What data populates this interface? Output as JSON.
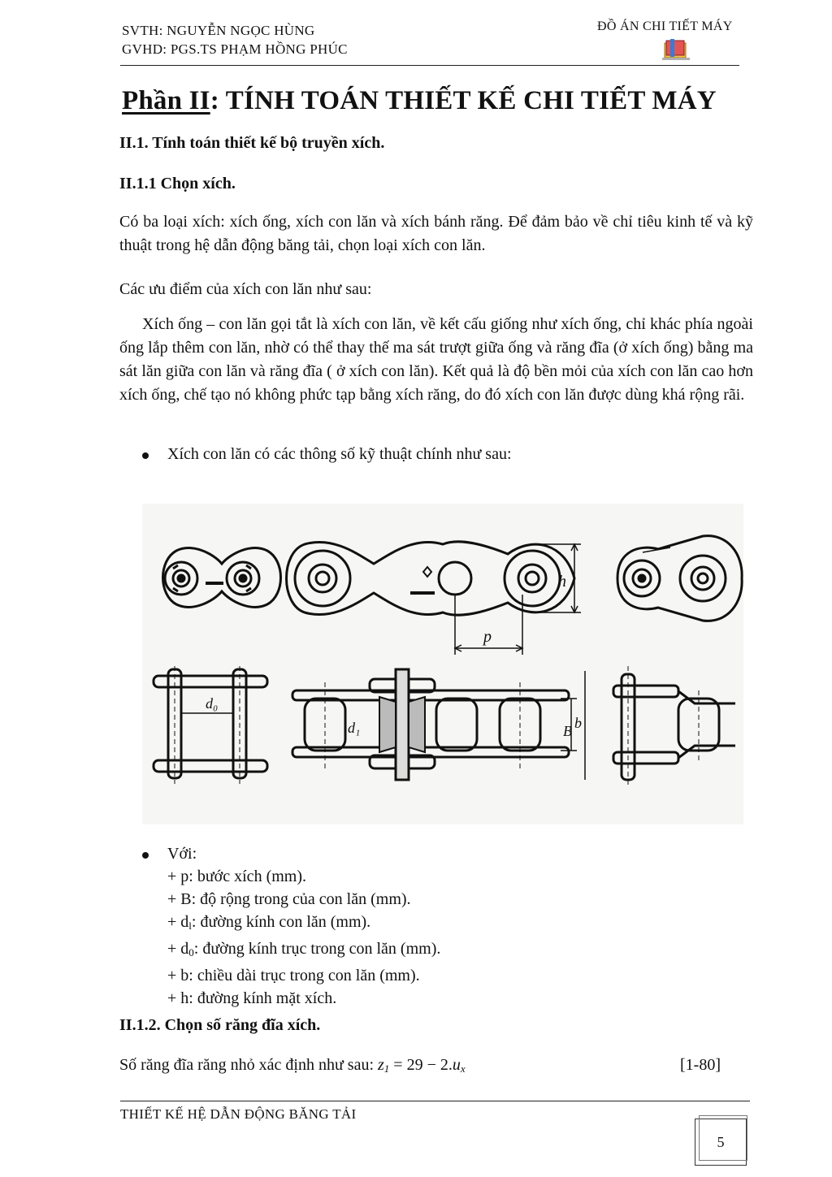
{
  "header": {
    "student": "SVTH: NGUYỄN NGỌC HÙNG",
    "supervisor": "GVHD: PGS.TS PHẠM HỒNG PHÚC",
    "project": "ĐỒ ÁN CHI TIẾT MÁY",
    "logo_icon": "book-logo-icon"
  },
  "title": {
    "part": "Phần II",
    "rest": ": TÍNH TOÁN THIẾT KẾ CHI TIẾT MÁY"
  },
  "sections": {
    "s1": "II.1. Tính toán thiết kế bộ truyền xích.",
    "s11": "II.1.1 Chọn xích.",
    "s12": "II.1.2. Chọn số răng đĩa xích."
  },
  "paragraphs": {
    "p1": "Có ba loại xích: xích ống, xích con lăn và xích bánh răng. Để đảm bảo về chỉ tiêu kinh tế và kỹ thuật trong hệ dẫn động băng tải, chọn loại xích con lăn.",
    "p2": "Các ưu điểm của xích con lăn như sau:",
    "p3": "Xích ống – con lăn gọi tắt là xích con lăn, về kết cấu giống như xích ống, chỉ khác phía ngoài ống lắp thêm con lăn, nhờ có thể thay thế ma sát trượt giữa ống và răng đĩa (ở xích ống) bằng ma sát lăn giữa con lăn và răng đĩa ( ở xích con lăn). Kết quả là độ bền mỏi của xích con lăn cao hơn xích ống, chế tạo nó không phức tạp bằng xích răng, do đó xích con lăn được dùng khá rộng rãi."
  },
  "bullets": {
    "b1": "Xích con lăn có các thông số kỹ thuật chính như sau:",
    "b2": "Với:"
  },
  "figure": {
    "labels": {
      "h": "h",
      "p": "p",
      "d0": "d₀",
      "d1": "d₁",
      "B": "B",
      "b": "b"
    }
  },
  "params": {
    "p": "+ p: bước xích (mm).",
    "B": "+ B: độ rộng trong của con lăn (mm).",
    "d1_pre": "+ d",
    "d1_sub": "l",
    "d1_post": ": đường kính con lăn (mm).",
    "d0_pre": "+ d",
    "d0_sub": "0",
    "d0_post": ": đường kính trục trong con lăn (mm).",
    "b": "+ b: chiều dài trục trong con lăn (mm).",
    "h": "+ h: đường kính mặt xích."
  },
  "equation": {
    "lead": "Số răng đĩa răng nhỏ xác định như sau: ",
    "z": "z",
    "z_sub": "1",
    "middle": " = 29 − 2.",
    "u": "u",
    "u_sub": "x",
    "ref": "[1-80]"
  },
  "footer": {
    "text": "THIẾT KẾ HỆ DẪN ĐỘNG BĂNG TẢI",
    "page": "5"
  }
}
